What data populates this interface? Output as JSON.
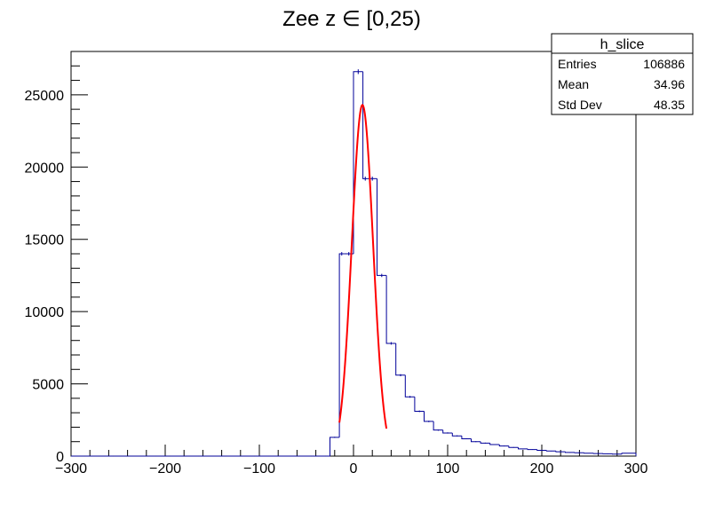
{
  "chart_data": {
    "type": "bar",
    "title": "Zee z ∈ [0,25)",
    "xlim": [
      -300,
      300
    ],
    "ylim": [
      0,
      28000
    ],
    "x_ticks": [
      -300,
      -200,
      -100,
      0,
      100,
      200,
      300
    ],
    "y_ticks": [
      0,
      5000,
      10000,
      15000,
      20000,
      25000
    ],
    "histogram": {
      "bin_edges": [
        -300,
        -285,
        -270,
        -255,
        -240,
        -225,
        -210,
        -195,
        -180,
        -165,
        -150,
        -135,
        -120,
        -105,
        -90,
        -75,
        -60,
        -45,
        -30,
        -25,
        -15,
        -10,
        0,
        10,
        15,
        25,
        35,
        45,
        55,
        65,
        75,
        85,
        95,
        105,
        115,
        125,
        135,
        145,
        155,
        165,
        175,
        185,
        195,
        205,
        215,
        225,
        235,
        245,
        255,
        265,
        275,
        285,
        300
      ],
      "counts": [
        0,
        0,
        0,
        0,
        0,
        0,
        0,
        0,
        0,
        0,
        0,
        0,
        0,
        0,
        0,
        0,
        0,
        0,
        0,
        1300,
        14000,
        14000,
        26600,
        19200,
        19200,
        12500,
        7800,
        5600,
        4100,
        3100,
        2400,
        1800,
        1600,
        1400,
        1200,
        1000,
        900,
        800,
        700,
        600,
        500,
        450,
        400,
        350,
        300,
        250,
        230,
        200,
        180,
        160,
        140,
        200
      ]
    },
    "fit": {
      "type": "gaussian",
      "amplitude": 24300,
      "mean": 9.5,
      "sigma": 11.3,
      "range": [
        -15,
        35
      ]
    },
    "colors": {
      "histogram": "#000099",
      "fit": "#ff0000"
    }
  },
  "stats_box": {
    "title": "h_slice",
    "rows": [
      {
        "label": "Entries",
        "value": "106886"
      },
      {
        "label": "Mean",
        "value": "34.96"
      },
      {
        "label": "Std Dev",
        "value": "48.35"
      }
    ]
  }
}
